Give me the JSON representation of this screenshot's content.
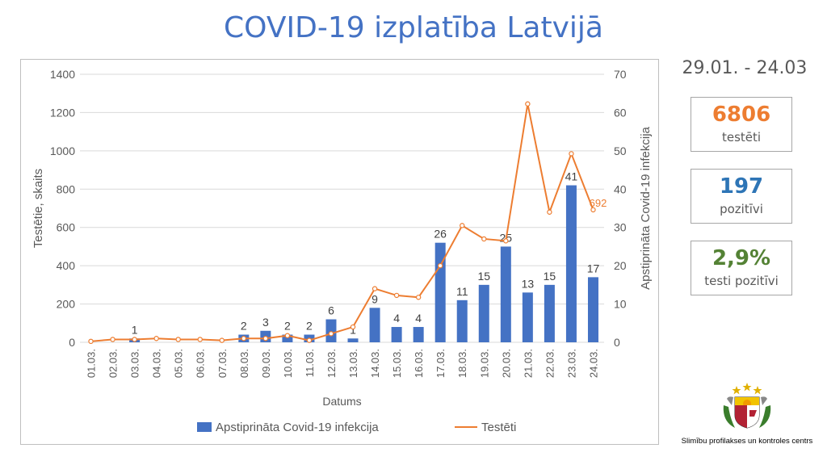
{
  "title": "COVID-19 izplatība Latvijā",
  "date_range": "29.01. - 24.03",
  "stats": [
    {
      "value": "6806",
      "label": "testēti",
      "color": "#ed7d31"
    },
    {
      "value": "197",
      "label": "pozitīvi",
      "color": "#2e75b6"
    },
    {
      "value": "2,9%",
      "label": "testi pozitīvi",
      "color": "#548235"
    }
  ],
  "organization": "Slimību profilakses un kontroles centrs",
  "colors": {
    "bars": "#4472c4",
    "line": "#ed7d31",
    "title": "#4472c4"
  },
  "chart_data": {
    "type": "bar",
    "categories": [
      "01.03.",
      "02.03.",
      "03.03.",
      "04.03.",
      "05.03.",
      "06.03.",
      "07.03.",
      "08.03.",
      "09.03.",
      "10.03.",
      "11.03.",
      "12.03.",
      "13.03.",
      "14.03.",
      "15.03.",
      "16.03.",
      "17.03.",
      "18.03.",
      "19.03.",
      "20.03.",
      "21.03.",
      "22.03.",
      "23.03.",
      "24.03."
    ],
    "xlabel": "Datums",
    "ylabel_left": "Testētie, skaits",
    "ylabel_right": "Apstiprināta Covid-19 infekcija",
    "ylim_left": [
      0,
      1400
    ],
    "ylim_right": [
      0,
      70
    ],
    "yticks_left": [
      "0",
      "200",
      "400",
      "600",
      "800",
      "1000",
      "1200",
      "1400"
    ],
    "yticks_right": [
      "0",
      "10",
      "20",
      "30",
      "40",
      "50",
      "60",
      "70"
    ],
    "grid": true,
    "legend_position": "bottom",
    "series": [
      {
        "name": "Apstiprināta Covid-19 infekcija",
        "type": "bar",
        "axis": "right",
        "values": [
          0,
          0,
          1,
          0,
          0,
          0,
          0,
          2,
          3,
          2,
          2,
          6,
          1,
          9,
          4,
          4,
          26,
          11,
          15,
          25,
          13,
          15,
          41,
          17
        ],
        "labels": [
          "",
          "",
          "1",
          "",
          "",
          "",
          "",
          "2",
          "3",
          "2",
          "2",
          "6",
          "1",
          "9",
          "4",
          "4",
          "26",
          "11",
          "15",
          "25",
          "13",
          "15",
          "41",
          "17"
        ]
      },
      {
        "name": "Testēti",
        "type": "line",
        "axis": "left",
        "values": [
          5,
          15,
          15,
          20,
          15,
          15,
          10,
          20,
          20,
          35,
          10,
          45,
          80,
          280,
          245,
          235,
          400,
          610,
          540,
          530,
          1245,
          680,
          985,
          692
        ],
        "last_label": "692"
      }
    ]
  }
}
